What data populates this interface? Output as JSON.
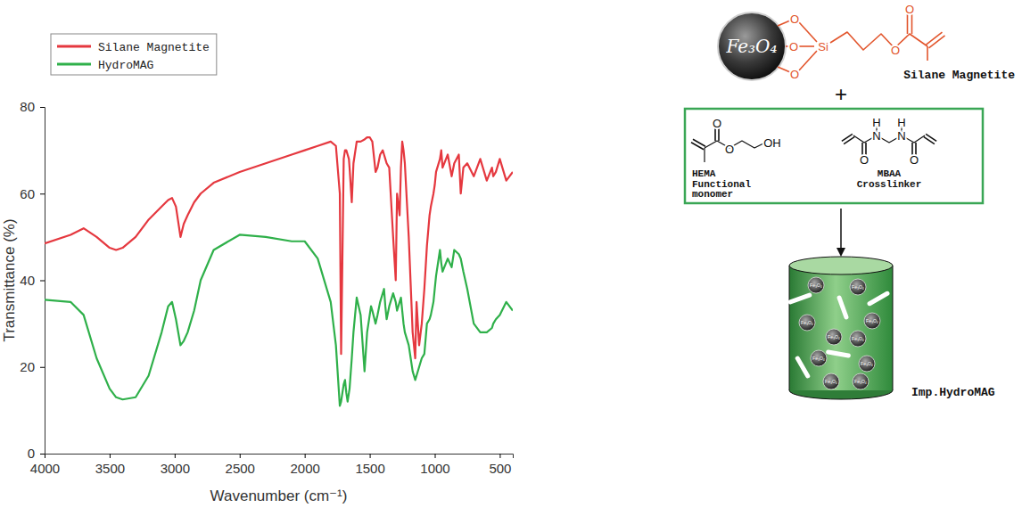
{
  "chart_data": {
    "type": "line",
    "x_label": "Wavenumber (cm⁻¹)",
    "y_label": "Transmittance (%)",
    "xlim": [
      4000,
      400
    ],
    "ylim": [
      0,
      80
    ],
    "xticks": [
      4000,
      3500,
      3000,
      2500,
      2000,
      1500,
      1000,
      500
    ],
    "yticks": [
      0,
      20,
      40,
      60,
      80
    ],
    "grid": false,
    "legend": "top-left",
    "x": [
      4000,
      3800,
      3700,
      3600,
      3500,
      3450,
      3400,
      3300,
      3200,
      3100,
      3050,
      3020,
      2990,
      2955,
      2930,
      2900,
      2850,
      2800,
      2700,
      2500,
      2300,
      2100,
      2000,
      1900,
      1800,
      1760,
      1730,
      1720,
      1710,
      1700,
      1690,
      1680,
      1670,
      1660,
      1655,
      1638,
      1625,
      1600,
      1570,
      1540,
      1520,
      1500,
      1490,
      1480,
      1455,
      1440,
      1420,
      1400,
      1390,
      1380,
      1370,
      1350,
      1320,
      1300,
      1290,
      1270,
      1260,
      1250,
      1240,
      1230,
      1200,
      1170,
      1150,
      1140,
      1120,
      1100,
      1080,
      1060,
      1040,
      1030,
      1010,
      1000,
      990,
      960,
      950,
      940,
      900,
      870,
      850,
      815,
      800,
      780,
      750,
      700,
      650,
      600,
      560,
      550,
      530,
      500,
      450,
      400
    ],
    "series": [
      {
        "name": "Silane Magnetite",
        "color": "#e5383f",
        "values": [
          48.5,
          50.5,
          52,
          50,
          47.5,
          47,
          47.5,
          50,
          54,
          57,
          58.5,
          59,
          57,
          50,
          53,
          55,
          58,
          60,
          62.5,
          65,
          67,
          69,
          70,
          71,
          72,
          71,
          60,
          23,
          45,
          68,
          70,
          70,
          69,
          68,
          66,
          58,
          67,
          72,
          72,
          72.5,
          73,
          73,
          72.5,
          72,
          65,
          66,
          69,
          70,
          69,
          68,
          67,
          66,
          50,
          40,
          60,
          55,
          66,
          72,
          70,
          67,
          50,
          28,
          22,
          35,
          25,
          30,
          38,
          48,
          55,
          57,
          60,
          62,
          65,
          68,
          70,
          66,
          69,
          64,
          67,
          69,
          60,
          66,
          67,
          64,
          68,
          63,
          66,
          64,
          65,
          68,
          63,
          65
        ]
      },
      {
        "name": "HydroMAG",
        "color": "#2fb04a",
        "values": [
          35.5,
          35,
          32,
          22,
          15,
          13,
          12.5,
          13,
          18,
          28,
          34,
          35,
          31,
          25,
          26,
          28,
          33,
          40,
          47,
          50.5,
          50,
          49,
          49,
          45,
          35,
          25,
          11,
          12,
          14,
          16,
          17,
          14,
          12,
          14,
          15,
          22,
          28,
          36,
          32,
          19,
          28,
          32,
          34,
          33,
          30,
          32,
          35,
          37,
          38,
          34,
          31,
          34,
          37,
          35,
          33,
          35,
          36,
          33,
          30,
          28,
          25,
          19,
          17,
          18,
          20,
          22,
          23,
          30,
          31,
          32,
          35,
          38,
          41,
          47,
          44,
          42,
          45,
          43,
          47,
          46,
          45,
          42,
          38,
          30,
          28,
          28,
          29,
          30,
          31,
          32,
          35,
          33
        ]
      }
    ]
  },
  "diagram": {
    "silane": {
      "core": "Fe₃O₄",
      "atoms": [
        "O",
        "O",
        "O",
        "Si",
        "O",
        "O"
      ],
      "label": "Silane Magnetite"
    },
    "plus": "+",
    "monomers": [
      {
        "name": "HEMA",
        "role": "Functional monomer",
        "atoms": [
          "O",
          "O",
          "OH"
        ]
      },
      {
        "name": "MBAA",
        "role": "Crosslinker",
        "atoms": [
          "O",
          "H",
          "N",
          "H",
          "N",
          "O"
        ]
      }
    ],
    "product": {
      "particle_label": "Fe₃O₄",
      "label": "Imp.HydroMAG"
    }
  }
}
